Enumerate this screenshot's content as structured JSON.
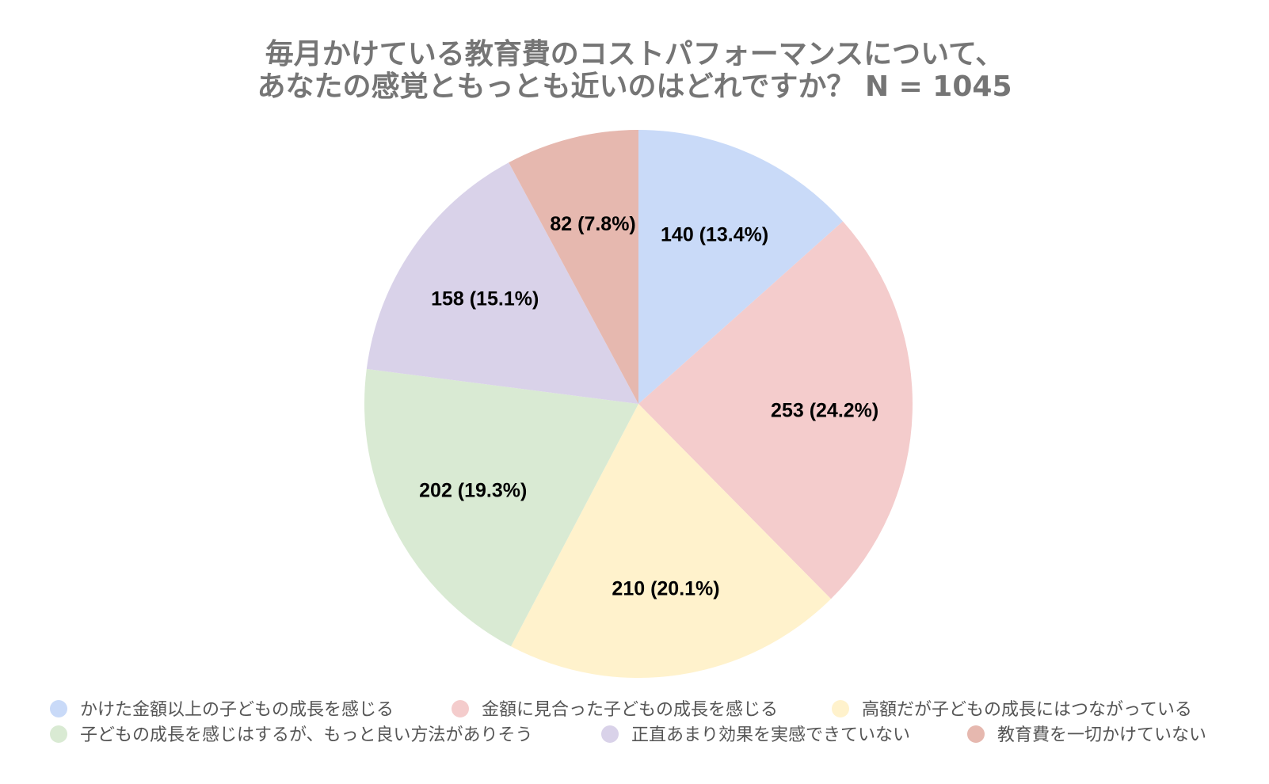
{
  "chart_data": {
    "type": "pie",
    "title_lines": [
      "毎月かけている教育費のコストパフォーマンスについて、",
      "あなたの感覚ともっとも近いのはどれですか？ N = 1045"
    ],
    "total": 1045,
    "start_angle_deg": 0,
    "direction": "clockwise",
    "legend_position": "bottom",
    "slices": [
      {
        "label": "かけた金額以上の子どもの成長を感じる",
        "value": 140,
        "percent": "13.4%",
        "display": "140 (13.4%)",
        "color": "#c9daf8"
      },
      {
        "label": "金額に見合った子どもの成長を感じる",
        "value": 253,
        "percent": "24.2%",
        "display": "253 (24.2%)",
        "color": "#f4cccc"
      },
      {
        "label": "高額だが子どもの成長にはつながっている",
        "value": 210,
        "percent": "20.1%",
        "display": "210 (20.1%)",
        "color": "#fff2cc"
      },
      {
        "label": "子どもの成長を感じはするが、もっと良い方法がありそう",
        "value": 202,
        "percent": "19.3%",
        "display": "202 (19.3%)",
        "color": "#d9ead3"
      },
      {
        "label": "正直あまり効果を実感できていない",
        "value": 158,
        "percent": "15.1%",
        "display": "158 (15.1%)",
        "color": "#d9d2e9"
      },
      {
        "label": "教育費を一切かけていない",
        "value": 82,
        "percent": "7.8%",
        "display": "82 (7.8%)",
        "color": "#e6b8af"
      }
    ]
  }
}
